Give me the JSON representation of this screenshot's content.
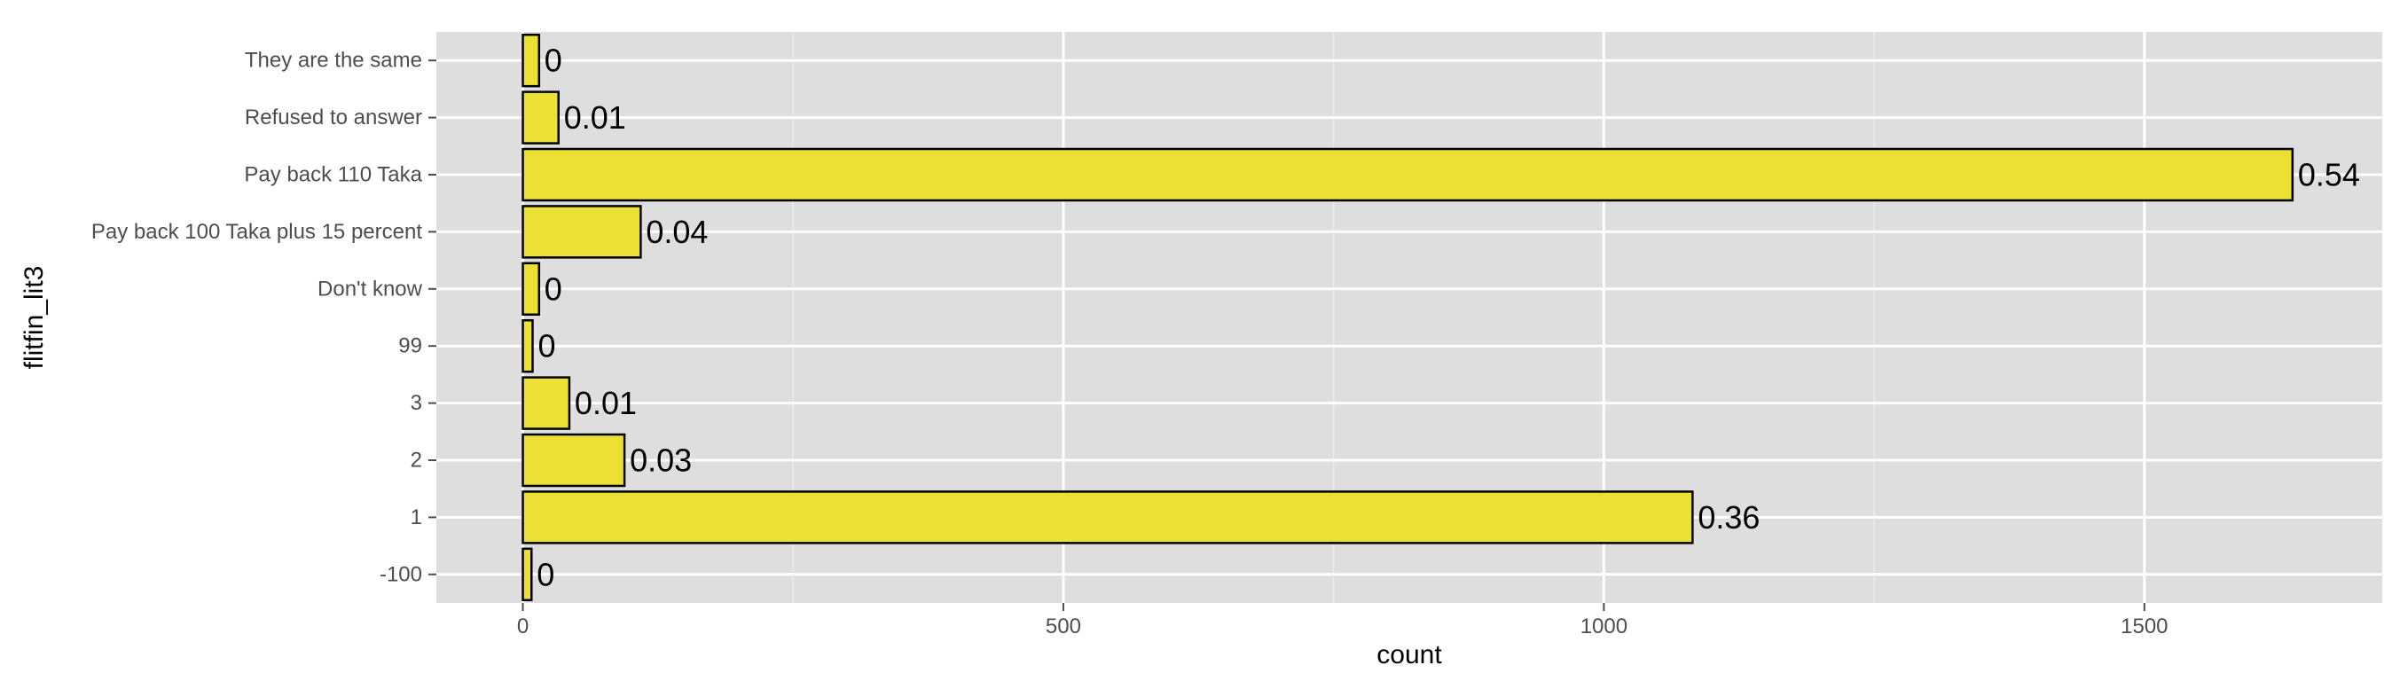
{
  "chart_data": {
    "type": "bar",
    "orientation": "horizontal",
    "categories": [
      "-100",
      "1",
      "2",
      "3",
      "99",
      "Don't know",
      "Pay back 100 Taka plus 15 percent",
      "Pay back 110 Taka",
      "Refused to answer",
      "They are the same"
    ],
    "values": [
      8,
      1082,
      94,
      43,
      9,
      15,
      109,
      1637,
      33,
      15
    ],
    "data_labels": [
      "0",
      "0.36",
      "0.03",
      "0.01",
      "0",
      "0",
      "0.04",
      "0.54",
      "0.01",
      "0"
    ],
    "xlabel": "count",
    "ylabel": "flitfin_lit3",
    "xlim": [
      -80,
      1720
    ],
    "xticks": [
      0,
      500,
      1000,
      1500
    ],
    "xtick_labels": [
      "0",
      "500",
      "1000",
      "1500"
    ],
    "grid": true,
    "legend": "none",
    "colors": {
      "panel": "#dedede",
      "grid_major": "#ffffff",
      "grid_minor": "#ebebeb",
      "bar_fill": "#ede034",
      "bar_stroke": "#000000",
      "tick_mark": "#4d4d4d"
    }
  }
}
